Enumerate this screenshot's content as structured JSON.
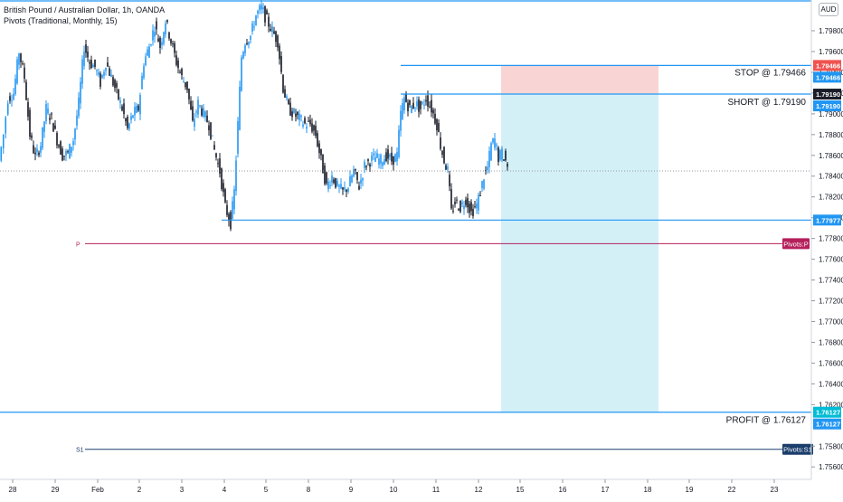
{
  "header": {
    "title": "British Pound / Australian Dollar, 1h, OANDA",
    "indicator": "Pivots (Traditional, Monthly, 15)",
    "currency": "AUD"
  },
  "colors": {
    "up_candle": "#2196f3",
    "down_candle": "#131722",
    "level_line": "#2196f3",
    "pivot_p": "#b5205c",
    "pivot_s1": "#1a3d6b",
    "stop_zone": "#f9d4d4",
    "profit_zone": "#d4f0f7",
    "stop_badge": "#f05350",
    "price_badge": "#1a1d29",
    "blue_badge": "#2196f3",
    "cyan_badge": "#00bcd4"
  },
  "chart_data": {
    "type": "candlestick",
    "y_axis": {
      "ticks": [
        "1.79800",
        "1.79600",
        "1.79400",
        "1.79200",
        "1.79000",
        "1.78800",
        "1.78600",
        "1.78400",
        "1.78200",
        "1.78000",
        "1.77800",
        "1.77600",
        "1.77400",
        "1.77200",
        "1.77000",
        "1.76800",
        "1.76600",
        "1.76400",
        "1.76200",
        "1.75800",
        "1.75600"
      ],
      "range": [
        1.7548,
        1.8007
      ]
    },
    "x_axis": {
      "ticks": [
        "28",
        "29",
        "Feb",
        "2",
        "3",
        "4",
        "5",
        "8",
        "9",
        "10",
        "11",
        "12",
        "15",
        "16",
        "17",
        "18",
        "19",
        "22",
        "23"
      ]
    },
    "price_path": [
      [
        0,
        1.7855
      ],
      [
        5,
        1.788
      ],
      [
        10,
        1.7915
      ],
      [
        16,
        1.792
      ],
      [
        22,
        1.796
      ],
      [
        28,
        1.7935
      ],
      [
        34,
        1.788
      ],
      [
        40,
        1.7858
      ],
      [
        46,
        1.787
      ],
      [
        52,
        1.7905
      ],
      [
        58,
        1.7895
      ],
      [
        64,
        1.7875
      ],
      [
        70,
        1.786
      ],
      [
        76,
        1.7862
      ],
      [
        82,
        1.7875
      ],
      [
        88,
        1.791
      ],
      [
        94,
        1.7965
      ],
      [
        100,
        1.795
      ],
      [
        106,
        1.7945
      ],
      [
        112,
        1.793
      ],
      [
        118,
        1.795
      ],
      [
        124,
        1.7935
      ],
      [
        130,
        1.792
      ],
      [
        136,
        1.7905
      ],
      [
        142,
        1.7885
      ],
      [
        148,
        1.79
      ],
      [
        154,
        1.7905
      ],
      [
        160,
        1.795
      ],
      [
        166,
        1.7965
      ],
      [
        172,
        1.7985
      ],
      [
        178,
        1.7965
      ],
      [
        184,
        1.799
      ],
      [
        190,
        1.797
      ],
      [
        196,
        1.795
      ],
      [
        202,
        1.7935
      ],
      [
        208,
        1.7925
      ],
      [
        214,
        1.789
      ],
      [
        220,
        1.791
      ],
      [
        226,
        1.79
      ],
      [
        232,
        1.789
      ],
      [
        238,
        1.7865
      ],
      [
        244,
        1.7845
      ],
      [
        250,
        1.781
      ],
      [
        256,
        1.7795
      ],
      [
        260,
        1.7825
      ],
      [
        264,
        1.789
      ],
      [
        268,
        1.7955
      ],
      [
        272,
        1.797
      ],
      [
        278,
        1.7975
      ],
      [
        284,
        1.7995
      ],
      [
        290,
        1.8002
      ],
      [
        296,
        1.799
      ],
      [
        302,
        1.798
      ],
      [
        308,
        1.797
      ],
      [
        314,
        1.7925
      ],
      [
        320,
        1.7905
      ],
      [
        326,
        1.79
      ],
      [
        332,
        1.7895
      ],
      [
        338,
        1.789
      ],
      [
        344,
        1.789
      ],
      [
        350,
        1.788
      ],
      [
        356,
        1.7855
      ],
      [
        362,
        1.783
      ],
      [
        368,
        1.784
      ],
      [
        374,
        1.783
      ],
      [
        380,
        1.7825
      ],
      [
        386,
        1.783
      ],
      [
        392,
        1.7845
      ],
      [
        398,
        1.783
      ],
      [
        404,
        1.785
      ],
      [
        410,
        1.7855
      ],
      [
        416,
        1.7858
      ],
      [
        422,
        1.7855
      ],
      [
        428,
        1.786
      ],
      [
        434,
        1.7855
      ],
      [
        440,
        1.786
      ],
      [
        444,
        1.79
      ],
      [
        448,
        1.7915
      ],
      [
        454,
        1.7905
      ],
      [
        460,
        1.791
      ],
      [
        466,
        1.7905
      ],
      [
        472,
        1.7915
      ],
      [
        478,
        1.7905
      ],
      [
        484,
        1.789
      ],
      [
        488,
        1.787
      ],
      [
        492,
        1.7855
      ],
      [
        496,
        1.7845
      ],
      [
        500,
        1.7805
      ],
      [
        504,
        1.7815
      ],
      [
        510,
        1.781
      ],
      [
        516,
        1.7818
      ],
      [
        522,
        1.7805
      ],
      [
        528,
        1.7812
      ],
      [
        532,
        1.7825
      ],
      [
        536,
        1.784
      ],
      [
        540,
        1.7848
      ],
      [
        544,
        1.787
      ],
      [
        548,
        1.7875
      ],
      [
        552,
        1.7858
      ],
      [
        556,
        1.7862
      ],
      [
        560,
        1.7855
      ],
      [
        562,
        1.785
      ]
    ],
    "last_price": 1.7845,
    "levels": [
      {
        "name": "stop_line",
        "label": "STOP @ 1.79466",
        "value": 1.79466
      },
      {
        "name": "short_line",
        "label": "SHORT @ 1.79190",
        "value": 1.7919
      },
      {
        "name": "support_line",
        "value": 1.77977
      },
      {
        "name": "profit_line",
        "label": "PROFIT @ 1.76127",
        "value": 1.76127
      }
    ],
    "pivots": [
      {
        "name": "P",
        "label": "P",
        "badge": "Pivots:P",
        "value": 1.7775
      },
      {
        "name": "S1",
        "label": "S1",
        "badge": "Pivots:S1",
        "value": 1.7577
      }
    ],
    "position_tool": {
      "entry": 1.7919,
      "stop": 1.79466,
      "target": 1.76127,
      "x_range": [
        "15",
        "18"
      ]
    },
    "price_badges": [
      {
        "text": "1.79466",
        "value": 1.79466,
        "kind": "stop_badge"
      },
      {
        "text": "1.79466",
        "value": 1.79466,
        "kind": "blue_badge",
        "offset": 1
      },
      {
        "text": "1.79190",
        "value": 1.7919,
        "kind": "price_badge"
      },
      {
        "text": "1.79190",
        "value": 1.7919,
        "kind": "blue_badge",
        "offset": 1
      },
      {
        "text": "1.77977",
        "value": 1.77977,
        "kind": "blue_badge"
      },
      {
        "text": "1.76127",
        "value": 1.76127,
        "kind": "cyan_badge"
      },
      {
        "text": "1.76127",
        "value": 1.76127,
        "kind": "blue_badge",
        "offset": 1
      }
    ]
  }
}
